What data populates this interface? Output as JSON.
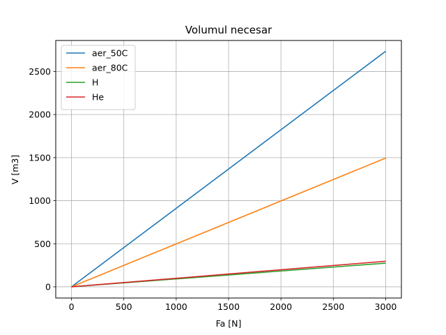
{
  "chart_data": {
    "type": "line",
    "title": "Volumul necesar",
    "xlabel": "Fa [N]",
    "ylabel": "V [m3]",
    "xlim": [
      -150,
      3150
    ],
    "ylim": [
      -130,
      2860
    ],
    "xticks": [
      0,
      500,
      1000,
      1500,
      2000,
      2500,
      3000
    ],
    "yticks": [
      0,
      500,
      1000,
      1500,
      2000,
      2500
    ],
    "grid": true,
    "legend_position": "top-left",
    "series": [
      {
        "name": "aer_50C",
        "color": "#1f77b4",
        "x": [
          0,
          3000
        ],
        "y": [
          0,
          2735
        ]
      },
      {
        "name": "aer_80C",
        "color": "#ff7f0e",
        "x": [
          0,
          3000
        ],
        "y": [
          0,
          1495
        ]
      },
      {
        "name": "H",
        "color": "#2ca02c",
        "x": [
          0,
          3000
        ],
        "y": [
          0,
          275
        ]
      },
      {
        "name": "He",
        "color": "#d62728",
        "x": [
          0,
          3000
        ],
        "y": [
          0,
          297
        ]
      }
    ]
  }
}
